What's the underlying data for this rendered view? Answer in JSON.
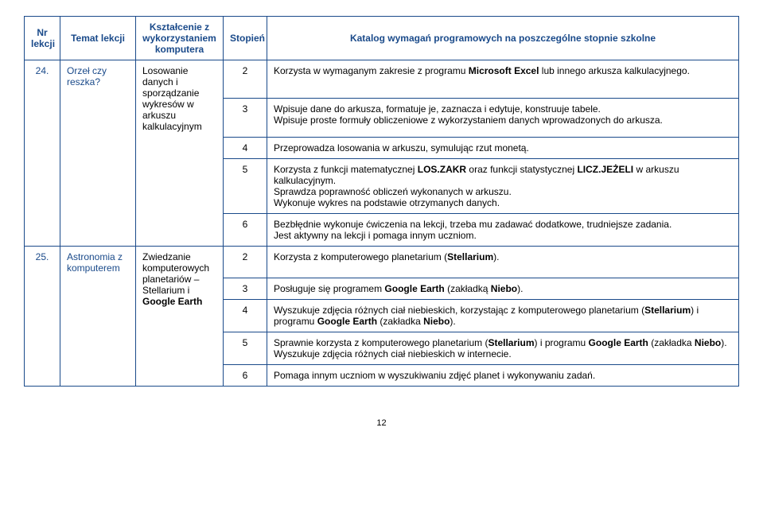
{
  "header": {
    "nr": "Nr lekcji",
    "temat": "Temat lekcji",
    "kszt": "Kształcenie z wykorzystaniem komputera",
    "stopien": "Stopień",
    "katalog": "Katalog wymagań programowych na poszczególne stopnie szkolne"
  },
  "r24": {
    "nr": "24.",
    "temat": "Orzeł czy reszka?",
    "kszt": "Losowanie danych i sporządzanie wykresów w arkuszu kalkulacyjnym",
    "rows": [
      {
        "st": "2",
        "txt": "Korzysta w wymaganym zakresie z programu Microsoft Excel lub innego arkusza kalkulacyjnego."
      },
      {
        "st": "3",
        "txt": "Wpisuje dane do arkusza, formatuje je, zaznacza i edytuje, konstruuje tabele.\nWpisuje proste formuły obliczeniowe z wykorzystaniem danych wprowadzonych do arkusza."
      },
      {
        "st": "4",
        "txt": "Przeprowadza losowania w arkuszu, symulując rzut monetą."
      },
      {
        "st": "5",
        "txt": "Korzysta z funkcji matematycznej LOS.ZAKR oraz funkcji statystycznej LICZ.JEŻELI w arkuszu kalkulacyjnym.\nSprawdza poprawność obliczeń wykonanych w arkuszu.\nWykonuje wykres na podstawie otrzymanych danych."
      },
      {
        "st": "6",
        "txt": "Bezbłędnie wykonuje ćwiczenia na lekcji, trzeba mu zadawać dodatkowe, trudniejsze zadania.\nJest aktywny na lekcji i pomaga innym uczniom."
      }
    ]
  },
  "r25": {
    "nr": "25.",
    "temat": "Astronomia z komputerem",
    "kszt": "Zwiedzanie komputerowych planetariów – Stellarium i Google Earth",
    "rows": [
      {
        "st": "2",
        "txt": "Korzysta z komputerowego planetarium (Stellarium)."
      },
      {
        "st": "3",
        "txt": "Posługuje się programem Google Earth (zakładką Niebo)."
      },
      {
        "st": "4",
        "txt": "Wyszukuje zdjęcia różnych ciał niebieskich, korzystając z komputerowego planetarium (Stellarium) i programu Google Earth (zakładka Niebo)."
      },
      {
        "st": "5",
        "txt": "Sprawnie korzysta z komputerowego planetarium (Stellarium) i programu Google Earth (zakładka Niebo).\nWyszukuje zdjęcia różnych ciał niebieskich w internecie."
      },
      {
        "st": "6",
        "txt": "Pomaga innym uczniom w wyszukiwaniu zdjęć planet i wykonywaniu zadań."
      }
    ]
  },
  "page_num": "12"
}
